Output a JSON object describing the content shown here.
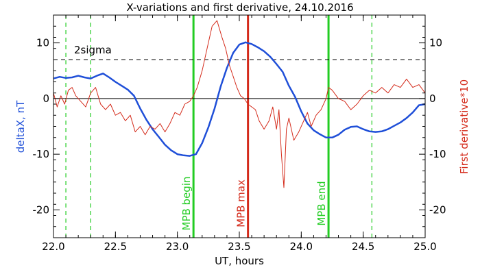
{
  "chart_data": {
    "type": "line",
    "title": "X-variations and first derivative, 24.10.2016",
    "xlabel": "UT, hours",
    "ylabel_left": "deltaX, nT",
    "ylabel_right": "First derivative*10",
    "xlim": [
      22.0,
      25.0
    ],
    "ylim": [
      -25,
      15
    ],
    "x_ticks": [
      "22.0",
      "22.5",
      "23.0",
      "23.5",
      "24.0",
      "24.5",
      "25.0"
    ],
    "y_ticks_left": [
      "10",
      "0",
      "-10",
      "-20"
    ],
    "y_ticks_right": [
      "10",
      "0",
      "-10",
      "-20"
    ],
    "grid": false,
    "colors": {
      "deltaX": "#1f4fd8",
      "derivative": "#d42a1a",
      "mpb_marker": "#22cc22",
      "mpb_max": "#d42a1a",
      "axis": "#000000"
    },
    "series": [
      {
        "key": "deltaX",
        "x": [
          22.0,
          22.05,
          22.1,
          22.15,
          22.2,
          22.25,
          22.3,
          22.35,
          22.4,
          22.45,
          22.5,
          22.55,
          22.6,
          22.65,
          22.7,
          22.75,
          22.8,
          22.85,
          22.9,
          22.95,
          23.0,
          23.05,
          23.1,
          23.15,
          23.2,
          23.25,
          23.3,
          23.35,
          23.4,
          23.45,
          23.5,
          23.55,
          23.6,
          23.65,
          23.7,
          23.75,
          23.8,
          23.85,
          23.9,
          23.95,
          24.0,
          24.05,
          24.1,
          24.15,
          24.2,
          24.25,
          24.3,
          24.35,
          24.4,
          24.45,
          24.5,
          24.55,
          24.6,
          24.65,
          24.7,
          24.75,
          24.8,
          24.85,
          24.9,
          24.95,
          25.0
        ],
        "values": [
          3.6,
          3.9,
          3.7,
          3.8,
          4.1,
          3.8,
          3.6,
          4.1,
          4.5,
          3.8,
          3.0,
          2.3,
          1.6,
          0.5,
          -1.8,
          -3.8,
          -5.5,
          -6.9,
          -8.3,
          -9.3,
          -10.0,
          -10.2,
          -10.3,
          -10.0,
          -8.0,
          -5.2,
          -1.8,
          2.2,
          5.5,
          8.2,
          9.7,
          10.1,
          9.8,
          9.2,
          8.5,
          7.5,
          6.2,
          4.8,
          2.3,
          0.3,
          -2.3,
          -4.5,
          -5.7,
          -6.4,
          -7.0,
          -7.0,
          -6.5,
          -5.6,
          -5.1,
          -5.0,
          -5.5,
          -5.9,
          -6.0,
          -5.9,
          -5.5,
          -4.9,
          -4.3,
          -3.5,
          -2.5,
          -1.2,
          -1.0
        ]
      },
      {
        "key": "derivative",
        "x": [
          22.0,
          22.03,
          22.06,
          22.09,
          22.12,
          22.15,
          22.18,
          22.22,
          22.26,
          22.3,
          22.34,
          22.38,
          22.42,
          22.46,
          22.5,
          22.54,
          22.58,
          22.62,
          22.66,
          22.7,
          22.74,
          22.78,
          22.82,
          22.86,
          22.9,
          22.94,
          22.98,
          23.02,
          23.06,
          23.1,
          23.13,
          23.16,
          23.2,
          23.24,
          23.28,
          23.32,
          23.36,
          23.39,
          23.42,
          23.45,
          23.48,
          23.51,
          23.54,
          23.57,
          23.6,
          23.63,
          23.66,
          23.7,
          23.74,
          23.77,
          23.8,
          23.82,
          23.84,
          23.86,
          23.88,
          23.9,
          23.94,
          23.98,
          24.02,
          24.05,
          24.08,
          24.12,
          24.16,
          24.2,
          24.22,
          24.25,
          24.3,
          24.35,
          24.4,
          24.45,
          24.5,
          24.55,
          24.6,
          24.65,
          24.7,
          24.75,
          24.8,
          24.85,
          24.9,
          24.95,
          25.0
        ],
        "values": [
          1.0,
          -1.5,
          0.5,
          -1.0,
          1.5,
          2.0,
          0.5,
          -0.5,
          -1.5,
          1.0,
          2.0,
          -1.0,
          -2.0,
          -1.0,
          -3.0,
          -2.5,
          -4.0,
          -3.0,
          -6.0,
          -5.0,
          -6.5,
          -5.0,
          -5.5,
          -4.5,
          -6.0,
          -4.5,
          -2.5,
          -3.0,
          -1.0,
          -0.5,
          0.5,
          2.0,
          5.0,
          9.0,
          13.0,
          14.0,
          11.0,
          9.0,
          6.0,
          4.0,
          2.0,
          0.5,
          0.0,
          -1.0,
          -1.5,
          -2.0,
          -4.0,
          -5.5,
          -4.0,
          -1.5,
          -5.5,
          -2.0,
          -10.0,
          -16.0,
          -5.5,
          -3.5,
          -7.5,
          -6.0,
          -4.0,
          -2.5,
          -5.0,
          -3.0,
          -2.0,
          0.0,
          2.0,
          1.5,
          0.0,
          -0.5,
          -2.0,
          -1.0,
          0.5,
          1.5,
          1.0,
          2.0,
          1.0,
          2.5,
          2.0,
          3.5,
          2.0,
          2.5,
          1.0
        ]
      }
    ],
    "reference_lines": {
      "zero": 0,
      "sigma": {
        "value": 7,
        "label": "2sigma"
      }
    },
    "markers": [
      {
        "x": 22.1,
        "style": "dashed",
        "color_key": "mpb_marker",
        "label": ""
      },
      {
        "x": 22.3,
        "style": "dashed",
        "color_key": "mpb_marker",
        "label": ""
      },
      {
        "x": 23.13,
        "style": "solid",
        "color_key": "mpb_marker",
        "label": "MPB begin"
      },
      {
        "x": 23.57,
        "style": "solid",
        "color_key": "mpb_max",
        "label": "MPB max"
      },
      {
        "x": 24.22,
        "style": "solid",
        "color_key": "mpb_marker",
        "label": "MPB end"
      },
      {
        "x": 24.57,
        "style": "dashed",
        "color_key": "mpb_marker",
        "label": ""
      }
    ]
  }
}
